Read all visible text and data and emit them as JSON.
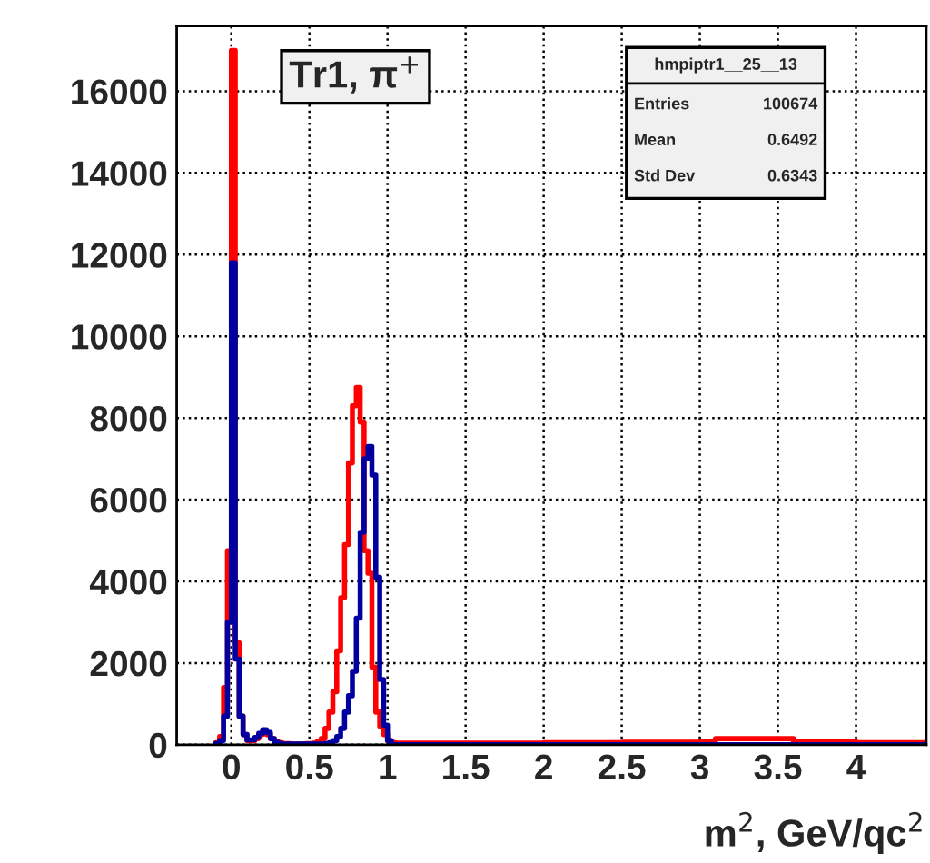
{
  "chart_data": {
    "type": "histogram",
    "title": "Tr1, π$^{+}$",
    "xlabel": "m$^{2}$, GeV/qc$^{2}$",
    "bins": [
      -0.1,
      -0.075,
      -0.05,
      -0.025,
      0,
      0.025,
      0.05,
      0.075,
      0.1,
      0.125,
      0.15,
      0.175,
      0.2,
      0.225,
      0.25,
      0.275,
      0.3,
      0.325,
      0.35,
      0.375,
      0.4,
      0.425,
      0.45,
      0.475,
      0.5,
      0.525,
      0.55,
      0.575,
      0.6,
      0.625,
      0.65,
      0.675,
      0.7,
      0.725,
      0.75,
      0.775,
      0.8,
      0.825,
      0.85,
      0.875,
      0.9,
      0.925,
      0.95,
      0.975,
      1.0,
      1.025,
      1.05,
      1.5,
      2,
      2.5,
      3,
      3.1,
      3.6,
      4,
      4.45
    ],
    "series": [
      {
        "color": "#ff0000",
        "values": [
          50,
          200,
          1400,
          4750,
          17000,
          2500,
          700,
          250,
          100,
          100,
          150,
          250,
          300,
          250,
          150,
          80,
          50,
          30,
          30,
          20,
          20,
          20,
          20,
          30,
          30,
          40,
          80,
          150,
          400,
          800,
          1300,
          2300,
          3600,
          4900,
          6900,
          8300,
          8750,
          7900,
          4750,
          4200,
          1900,
          800,
          450,
          250,
          100,
          50,
          40,
          40,
          50,
          60,
          80,
          150,
          80,
          50
        ]
      },
      {
        "color": "#0000a0",
        "values": [
          30,
          100,
          700,
          3000,
          11800,
          2100,
          700,
          250,
          120,
          120,
          180,
          280,
          370,
          300,
          150,
          60,
          30,
          20,
          20,
          20,
          20,
          20,
          20,
          20,
          20,
          20,
          20,
          20,
          30,
          50,
          100,
          200,
          400,
          800,
          1200,
          1800,
          3100,
          5200,
          7000,
          7300,
          6600,
          4100,
          1600,
          480,
          100,
          0,
          0,
          0,
          0,
          0,
          0,
          0,
          0,
          0
        ]
      }
    ],
    "annotations": [
      "hmpiptr1__25__13",
      "Entries",
      "100674",
      "Mean",
      "0.6492",
      "Std Dev",
      "0.6343"
    ],
    "xlim": [
      -0.35,
      4.45
    ],
    "ylim": [
      0,
      17600
    ],
    "xticks": [
      0,
      0.5,
      1,
      1.5,
      2,
      2.5,
      3,
      3.5,
      4
    ],
    "yticks": [
      0,
      2000,
      4000,
      6000,
      8000,
      10000,
      12000,
      14000,
      16000
    ],
    "grid": true,
    "line_style": "solid"
  }
}
